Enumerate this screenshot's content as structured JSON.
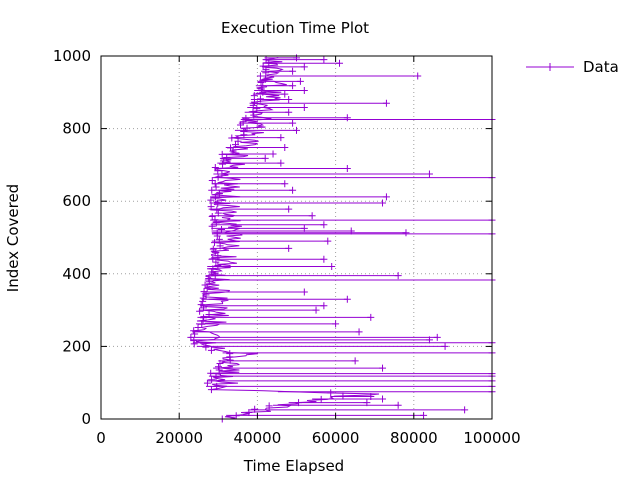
{
  "chart_data": {
    "type": "line",
    "title": "Execution Time Plot",
    "xlabel": "Time Elapsed",
    "ylabel": "Index Covered",
    "xlim": [
      0,
      100000
    ],
    "ylim": [
      0,
      1000
    ],
    "xticks": [
      "0",
      "20000",
      "40000",
      "60000",
      "80000",
      "100000"
    ],
    "yticks": [
      "0",
      "200",
      "400",
      "600",
      "800",
      "1000"
    ],
    "grid": true,
    "legend_position": "top-right",
    "series": [
      {
        "name": "Data",
        "color": "#9400d3",
        "marker": "+",
        "front": [
          [
            29000,
            0
          ],
          [
            32000,
            10
          ],
          [
            36000,
            20
          ],
          [
            40000,
            30
          ],
          [
            44000,
            38
          ],
          [
            48000,
            45
          ],
          [
            52000,
            52
          ],
          [
            56000,
            58
          ],
          [
            60000,
            64
          ],
          [
            64000,
            70
          ],
          [
            26500,
            80
          ],
          [
            27200,
            100
          ],
          [
            27500,
            115
          ],
          [
            28000,
            130
          ],
          [
            29000,
            145
          ],
          [
            30000,
            160
          ],
          [
            31000,
            170
          ],
          [
            32500,
            180
          ],
          [
            25500,
            190
          ],
          [
            24500,
            200
          ],
          [
            23500,
            210
          ],
          [
            22500,
            222
          ],
          [
            23000,
            235
          ],
          [
            24000,
            250
          ],
          [
            24500,
            270
          ],
          [
            25000,
            300
          ],
          [
            25500,
            320
          ],
          [
            26000,
            350
          ],
          [
            26500,
            380
          ],
          [
            27000,
            410
          ],
          [
            27500,
            440
          ],
          [
            28000,
            470
          ],
          [
            28500,
            500
          ],
          [
            28000,
            540
          ],
          [
            27500,
            580
          ],
          [
            28000,
            620
          ],
          [
            28500,
            660
          ],
          [
            29000,
            690
          ],
          [
            30500,
            720
          ],
          [
            32000,
            750
          ],
          [
            33500,
            780
          ],
          [
            35000,
            810
          ],
          [
            36500,
            840
          ],
          [
            38000,
            870
          ],
          [
            39000,
            900
          ],
          [
            40000,
            930
          ],
          [
            41000,
            960
          ],
          [
            41500,
            990
          ],
          [
            42000,
            998
          ]
        ],
        "spikes": [
          [
            10,
            82500
          ],
          [
            25,
            93000
          ],
          [
            38,
            76000
          ],
          [
            45,
            68000
          ],
          [
            55,
            72000
          ],
          [
            62,
            69000
          ],
          [
            75,
            100000
          ],
          [
            90,
            100000
          ],
          [
            105,
            100000
          ],
          [
            118,
            100000
          ],
          [
            125,
            100000
          ],
          [
            140,
            72000
          ],
          [
            160,
            65000
          ],
          [
            182,
            100000
          ],
          [
            210,
            100000
          ],
          [
            200,
            88000
          ],
          [
            218,
            84000
          ],
          [
            225,
            86000
          ],
          [
            240,
            66000
          ],
          [
            262,
            60000
          ],
          [
            280,
            69000
          ],
          [
            300,
            55000
          ],
          [
            312,
            57000
          ],
          [
            330,
            63000
          ],
          [
            350,
            52000
          ],
          [
            383,
            100000
          ],
          [
            395,
            76000
          ],
          [
            420,
            59000
          ],
          [
            440,
            57000
          ],
          [
            470,
            48000
          ],
          [
            490,
            58000
          ],
          [
            510,
            100000
          ],
          [
            513,
            78000
          ],
          [
            518,
            64000
          ],
          [
            525,
            52000
          ],
          [
            535,
            57000
          ],
          [
            548,
            100000
          ],
          [
            560,
            54000
          ],
          [
            578,
            48000
          ],
          [
            595,
            72000
          ],
          [
            612,
            73000
          ],
          [
            630,
            49000
          ],
          [
            648,
            47000
          ],
          [
            665,
            100000
          ],
          [
            675,
            84000
          ],
          [
            690,
            63000
          ],
          [
            705,
            46000
          ],
          [
            718,
            42000
          ],
          [
            730,
            44000
          ],
          [
            748,
            47000
          ],
          [
            775,
            46000
          ],
          [
            795,
            50000
          ],
          [
            815,
            49000
          ],
          [
            825,
            100000
          ],
          [
            830,
            63000
          ],
          [
            845,
            48000
          ],
          [
            858,
            52000
          ],
          [
            870,
            73000
          ],
          [
            880,
            48000
          ],
          [
            895,
            47000
          ],
          [
            905,
            52000
          ],
          [
            918,
            49000
          ],
          [
            930,
            51000
          ],
          [
            945,
            81000
          ],
          [
            958,
            49000
          ],
          [
            970,
            52000
          ],
          [
            980,
            61000
          ],
          [
            990,
            57000
          ],
          [
            995,
            50000
          ]
        ]
      }
    ]
  }
}
